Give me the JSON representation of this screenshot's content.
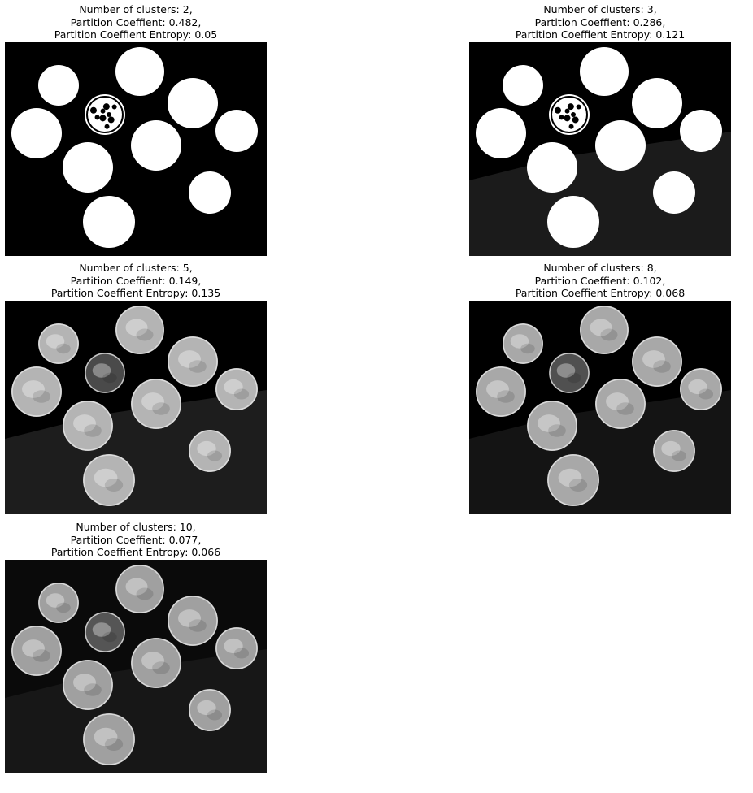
{
  "panels": [
    {
      "line1": "Number of clusters: 2,",
      "line2": "Partition Coeffient: 0.482,",
      "line3": "Partition Coeffient Entropy: 0.05",
      "n_clusters": 2,
      "background": "#000000",
      "coin_color": "#ffffff",
      "dark_coin_color": "#ffffff",
      "shadow_color": "#000000"
    },
    {
      "line1": "Number of clusters: 3,",
      "line2": "Partition Coeffient: 0.286,",
      "line3": "Partition Coeffient Entropy: 0.121",
      "n_clusters": 3,
      "background": "#000000",
      "coin_color": "#ffffff",
      "dark_coin_color": "#ffffff",
      "shadow_color": "#1e1e1e"
    },
    {
      "line1": "Number of clusters: 5,",
      "line2": "Partition Coeffient: 0.149,",
      "line3": "Partition Coeffient Entropy: 0.135",
      "n_clusters": 5,
      "background": "#000000",
      "coin_color": "#b4b4b4",
      "dark_coin_color": "#4a4a4a",
      "shadow_color": "#202020"
    },
    {
      "line1": "Number of clusters: 8,",
      "line2": "Partition Coeffient: 0.102,",
      "line3": "Partition Coeffient Entropy: 0.068",
      "n_clusters": 8,
      "background": "#000000",
      "coin_color": "#a8a8a8",
      "dark_coin_color": "#505050",
      "shadow_color": "#161616"
    },
    {
      "line1": "Number of clusters: 10,",
      "line2": "Partition Coeffient: 0.077,",
      "line3": "Partition Coeffient Entropy: 0.066",
      "n_clusters": 10,
      "background": "#0a0a0a",
      "coin_color": "#a0a0a0",
      "dark_coin_color": "#555555",
      "shadow_color": "#181818"
    }
  ]
}
